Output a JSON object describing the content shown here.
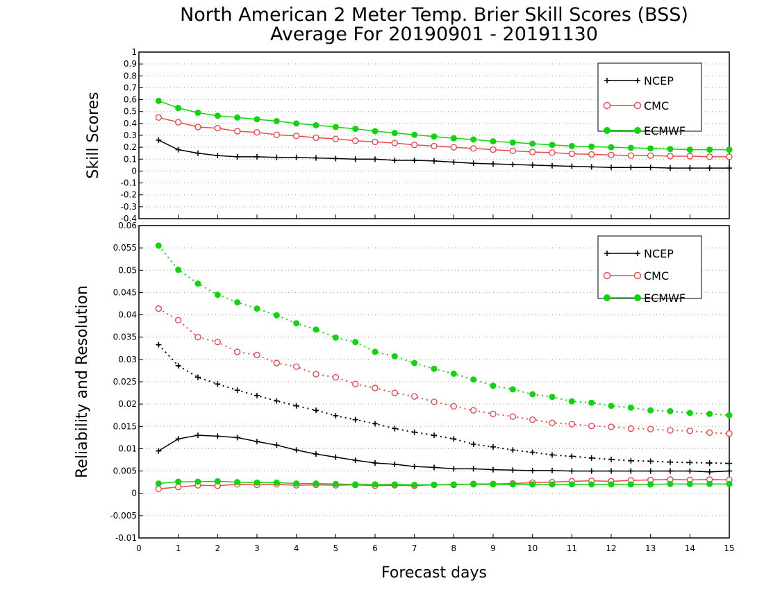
{
  "title": {
    "line1": "North American 2 Meter Temp. Brier Skill Scores (BSS)",
    "line2": "Average For 20190901 - 20191130"
  },
  "xlabel": "Forecast days",
  "colors": {
    "NCEP": "#000000",
    "CMC": "#e8494a",
    "ECMWF": "#11d411"
  },
  "chart_data": [
    {
      "type": "line",
      "ylabel": "Skill Scores",
      "xlim": [
        0,
        15
      ],
      "ylim": [
        -0.4,
        1
      ],
      "yticks": [
        "-0.4",
        "-0.3",
        "-0.2",
        "-0.1",
        "0",
        "0.1",
        "0.2",
        "0.3",
        "0.4",
        "0.5",
        "0.6",
        "0.7",
        "0.8",
        "0.9",
        "1"
      ],
      "grid": true,
      "legend": {
        "placement": "top-right",
        "entries": [
          "NCEP",
          "CMC",
          "ECMWF"
        ]
      },
      "x": [
        0.5,
        1,
        1.5,
        2,
        2.5,
        3,
        3.5,
        4,
        4.5,
        5,
        5.5,
        6,
        6.5,
        7,
        7.5,
        8,
        8.5,
        9,
        9.5,
        10,
        10.5,
        11,
        11.5,
        12,
        12.5,
        13,
        13.5,
        14,
        14.5,
        15
      ],
      "series": [
        {
          "name": "NCEP",
          "marker": "plus",
          "style": "solid",
          "values": [
            0.26,
            0.18,
            0.15,
            0.13,
            0.12,
            0.12,
            0.115,
            0.115,
            0.11,
            0.105,
            0.1,
            0.1,
            0.09,
            0.09,
            0.085,
            0.075,
            0.065,
            0.06,
            0.055,
            0.05,
            0.045,
            0.04,
            0.035,
            0.03,
            0.03,
            0.03,
            0.025,
            0.025,
            0.025,
            0.025
          ]
        },
        {
          "name": "CMC",
          "marker": "open-circle",
          "style": "solid",
          "values": [
            0.45,
            0.41,
            0.37,
            0.36,
            0.335,
            0.325,
            0.305,
            0.295,
            0.28,
            0.27,
            0.255,
            0.245,
            0.235,
            0.22,
            0.21,
            0.2,
            0.19,
            0.18,
            0.17,
            0.16,
            0.155,
            0.145,
            0.14,
            0.135,
            0.13,
            0.13,
            0.125,
            0.125,
            0.12,
            0.12
          ]
        },
        {
          "name": "ECMWF",
          "marker": "filled-circle",
          "style": "solid",
          "values": [
            0.59,
            0.53,
            0.49,
            0.465,
            0.45,
            0.435,
            0.42,
            0.4,
            0.385,
            0.37,
            0.355,
            0.335,
            0.32,
            0.305,
            0.29,
            0.275,
            0.265,
            0.25,
            0.24,
            0.23,
            0.22,
            0.21,
            0.205,
            0.2,
            0.195,
            0.19,
            0.185,
            0.18,
            0.18,
            0.18
          ]
        }
      ]
    },
    {
      "type": "line",
      "ylabel": "Reliability and Resolution",
      "xlim": [
        0,
        15
      ],
      "ylim": [
        -0.01,
        0.06
      ],
      "yticks": [
        "-0.01",
        "-0.005",
        "0",
        "0.005",
        "0.01",
        "0.015",
        "0.02",
        "0.025",
        "0.03",
        "0.035",
        "0.04",
        "0.045",
        "0.05",
        "0.055",
        "0.06"
      ],
      "xticks": [
        "0",
        "1",
        "2",
        "3",
        "4",
        "5",
        "6",
        "7",
        "8",
        "9",
        "10",
        "11",
        "12",
        "13",
        "14",
        "15"
      ],
      "grid": true,
      "legend": {
        "placement": "top-right",
        "entries": [
          "NCEP",
          "CMC",
          "ECMWF"
        ]
      },
      "x": [
        0.5,
        1,
        1.5,
        2,
        2.5,
        3,
        3.5,
        4,
        4.5,
        5,
        5.5,
        6,
        6.5,
        7,
        7.5,
        8,
        8.5,
        9,
        9.5,
        10,
        10.5,
        11,
        11.5,
        12,
        12.5,
        13,
        13.5,
        14,
        14.5,
        15
      ],
      "series": [
        {
          "name": "NCEP",
          "marker": "plus",
          "style": "dotted",
          "values": [
            0.0333,
            0.0286,
            0.026,
            0.0245,
            0.0231,
            0.0219,
            0.0207,
            0.0196,
            0.0186,
            0.0174,
            0.0165,
            0.0156,
            0.0145,
            0.0137,
            0.013,
            0.0122,
            0.011,
            0.0104,
            0.0097,
            0.0092,
            0.0086,
            0.0083,
            0.0079,
            0.0076,
            0.0073,
            0.0072,
            0.007,
            0.0069,
            0.0068,
            0.0067
          ]
        },
        {
          "name": "CMC",
          "marker": "open-circle",
          "style": "dotted",
          "values": [
            0.0414,
            0.0388,
            0.035,
            0.0339,
            0.0317,
            0.031,
            0.0292,
            0.0284,
            0.0267,
            0.026,
            0.0245,
            0.0236,
            0.0225,
            0.0217,
            0.0205,
            0.0195,
            0.0186,
            0.0178,
            0.0172,
            0.0165,
            0.0158,
            0.0155,
            0.0151,
            0.0149,
            0.0145,
            0.0144,
            0.0141,
            0.014,
            0.0136,
            0.0134
          ]
        },
        {
          "name": "ECMWF",
          "marker": "filled-circle",
          "style": "dotted",
          "values": [
            0.0555,
            0.0501,
            0.047,
            0.0445,
            0.0428,
            0.0414,
            0.0399,
            0.0381,
            0.0367,
            0.0349,
            0.0339,
            0.0317,
            0.0307,
            0.0292,
            0.0279,
            0.0268,
            0.0255,
            0.0241,
            0.0233,
            0.0222,
            0.0216,
            0.0206,
            0.0203,
            0.0196,
            0.0192,
            0.0186,
            0.0184,
            0.018,
            0.0178,
            0.0175
          ]
        },
        {
          "name": "NCEP",
          "marker": "plus",
          "style": "solid",
          "values": [
            0.0095,
            0.0122,
            0.013,
            0.0128,
            0.0125,
            0.0116,
            0.0108,
            0.0097,
            0.0088,
            0.0081,
            0.0074,
            0.0068,
            0.0065,
            0.006,
            0.0058,
            0.0055,
            0.0055,
            0.0053,
            0.0052,
            0.0051,
            0.0051,
            0.005,
            0.005,
            0.005,
            0.005,
            0.005,
            0.005,
            0.005,
            0.0048,
            0.005
          ]
        },
        {
          "name": "CMC",
          "marker": "open-circle",
          "style": "solid",
          "values": [
            0.001,
            0.0014,
            0.0018,
            0.0017,
            0.002,
            0.0019,
            0.002,
            0.0018,
            0.0019,
            0.0018,
            0.0019,
            0.0017,
            0.0018,
            0.0017,
            0.0019,
            0.0019,
            0.0021,
            0.0021,
            0.0022,
            0.0024,
            0.0025,
            0.0027,
            0.0028,
            0.0027,
            0.0029,
            0.003,
            0.0031,
            0.003,
            0.0031,
            0.003
          ]
        },
        {
          "name": "ECMWF",
          "marker": "filled-circle",
          "style": "solid",
          "values": [
            0.0022,
            0.0026,
            0.0026,
            0.0027,
            0.0025,
            0.0024,
            0.0024,
            0.0022,
            0.0022,
            0.0021,
            0.002,
            0.002,
            0.002,
            0.0019,
            0.0019,
            0.002,
            0.002,
            0.002,
            0.002,
            0.002,
            0.002,
            0.002,
            0.002,
            0.002,
            0.002,
            0.002,
            0.0021,
            0.0021,
            0.0021,
            0.0021
          ]
        }
      ]
    }
  ]
}
